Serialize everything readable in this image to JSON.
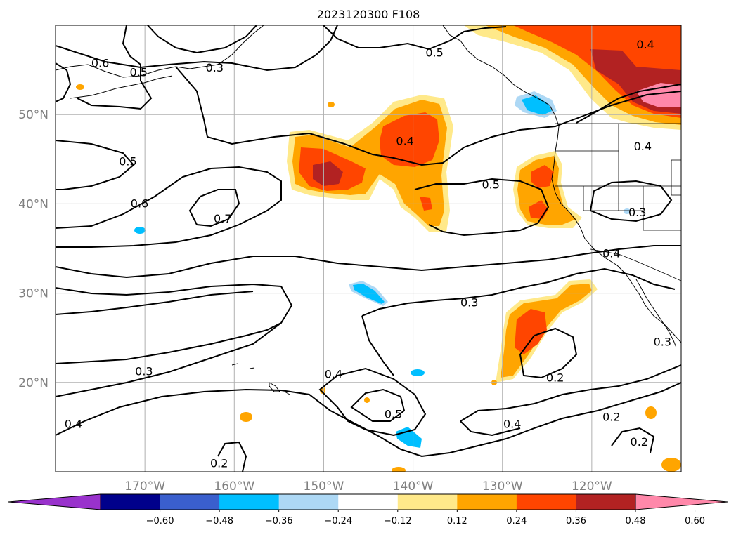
{
  "figure": {
    "title": "2023120300 F108"
  },
  "map": {
    "lat_range": [
      10,
      60
    ],
    "lon_range": [
      -180,
      -110
    ],
    "lat_ticks": [
      {
        "value": 20,
        "label": "20°N"
      },
      {
        "value": 30,
        "label": "30°N"
      },
      {
        "value": 40,
        "label": "40°N"
      },
      {
        "value": 50,
        "label": "50°N"
      }
    ],
    "lon_ticks": [
      {
        "value": -170,
        "label": "170°W"
      },
      {
        "value": -160,
        "label": "160°W"
      },
      {
        "value": -150,
        "label": "150°W"
      },
      {
        "value": -140,
        "label": "140°W"
      },
      {
        "value": -130,
        "label": "130°W"
      },
      {
        "value": -120,
        "label": "120°W"
      }
    ],
    "grid": true,
    "contour_labels": [
      {
        "text": "0.6",
        "lon": -175,
        "lat": 55.7
      },
      {
        "text": "0.5",
        "lon": -170.7,
        "lat": 54.7
      },
      {
        "text": "0.3",
        "lon": -162.2,
        "lat": 55.2
      },
      {
        "text": "0.5",
        "lon": -137.6,
        "lat": 56.9
      },
      {
        "text": "0.4",
        "lon": -114,
        "lat": 57.8
      },
      {
        "text": "0.5",
        "lon": -171.9,
        "lat": 44.7
      },
      {
        "text": "0.4",
        "lon": -140.9,
        "lat": 47
      },
      {
        "text": "0.4",
        "lon": -114.3,
        "lat": 46.4
      },
      {
        "text": "0.6",
        "lon": -170.6,
        "lat": 40
      },
      {
        "text": "0.7",
        "lon": -161.3,
        "lat": 38.3
      },
      {
        "text": "0.5",
        "lon": -131.3,
        "lat": 42.1
      },
      {
        "text": "0.3",
        "lon": -114.9,
        "lat": 39
      },
      {
        "text": "0.4",
        "lon": -117.8,
        "lat": 34.4
      },
      {
        "text": "0.3",
        "lon": -133.7,
        "lat": 28.9
      },
      {
        "text": "0.3",
        "lon": -112.1,
        "lat": 24.5
      },
      {
        "text": "0.3",
        "lon": -170.1,
        "lat": 21.2
      },
      {
        "text": "0.4",
        "lon": -148.9,
        "lat": 20.9
      },
      {
        "text": "0.2",
        "lon": -124.1,
        "lat": 20.5
      },
      {
        "text": "0.5",
        "lon": -142.2,
        "lat": 16.4
      },
      {
        "text": "0.4",
        "lon": -128.9,
        "lat": 15.3
      },
      {
        "text": "0.2",
        "lon": -117.8,
        "lat": 16.1
      },
      {
        "text": "0.4",
        "lon": -178,
        "lat": 15.3
      },
      {
        "text": "0.2",
        "lon": -114.7,
        "lat": 13.3
      },
      {
        "text": "0.2",
        "lon": -161.7,
        "lat": 10.9
      }
    ]
  },
  "colorbar": {
    "colors": [
      "#9932cc",
      "#00008b",
      "#3a5fcd",
      "#00bfff",
      "#add8f5",
      "#ffffff",
      "#ffe98a",
      "#ffa500",
      "#ff4500",
      "#b22222",
      "#ff88aa"
    ],
    "ticks": [
      "−0.60",
      "−0.48",
      "−0.36",
      "−0.24",
      "−0.12",
      "0.12",
      "0.24",
      "0.36",
      "0.48",
      "0.60"
    ]
  }
}
